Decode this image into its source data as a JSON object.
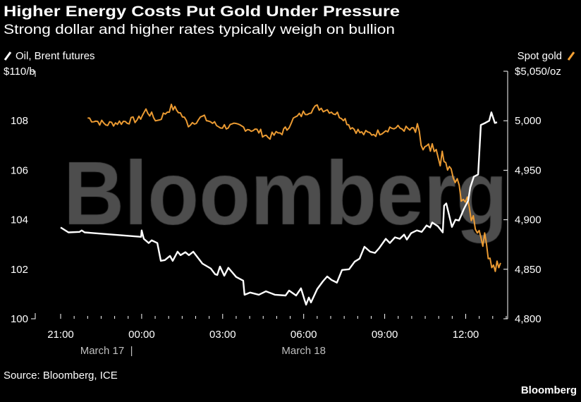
{
  "title": "Higher Energy Costs Put Gold Under Pressure",
  "subtitle": "Strong dollar and higher rates typically weigh on bullion",
  "source": "Source: Bloomberg, ICE",
  "brand": "Bloomberg",
  "watermark": "Bloomberg",
  "colors": {
    "oil": "#ffffff",
    "gold": "#f7a235",
    "background": "#000000",
    "watermark": "#4d4d4d"
  },
  "chart_data": {
    "type": "line",
    "title": "Higher Energy Costs Put Gold Under Pressure",
    "x_unit": "hours since 21:00 March 17",
    "xlim": [
      0,
      16.55
    ],
    "x_ticks": [
      {
        "h": 0,
        "label": "21:00"
      },
      {
        "h": 3,
        "label": "00:00"
      },
      {
        "h": 6,
        "label": "03:00"
      },
      {
        "h": 9,
        "label": "06:00"
      },
      {
        "h": 12,
        "label": "09:00"
      },
      {
        "h": 15,
        "label": "12:00"
      }
    ],
    "date_labels": [
      {
        "h": 1.7,
        "label": "March 17  |"
      },
      {
        "h": 9.0,
        "label": "March 18"
      }
    ],
    "left_axis": {
      "ylim": [
        100,
        110
      ],
      "ticks": [
        {
          "v": 110,
          "label": "$110/b"
        },
        {
          "v": 108,
          "label": "108"
        },
        {
          "v": 106,
          "label": "106"
        },
        {
          "v": 104,
          "label": "104"
        },
        {
          "v": 102,
          "label": "102"
        },
        {
          "v": 100,
          "label": "100"
        }
      ]
    },
    "right_axis": {
      "ylim": [
        4800,
        5050
      ],
      "ticks": [
        {
          "v": 5050,
          "label": "$5,050/oz"
        },
        {
          "v": 5000,
          "label": "5,000"
        },
        {
          "v": 4950,
          "label": "4,950"
        },
        {
          "v": 4900,
          "label": "4,900"
        },
        {
          "v": 4850,
          "label": "4,850"
        },
        {
          "v": 4800,
          "label": "4,800"
        }
      ]
    },
    "series": [
      {
        "name": "Oil, Brent futures",
        "axis": "left",
        "color": "#ffffff",
        "points": [
          [
            0.0,
            103.69
          ],
          [
            0.29,
            103.49
          ],
          [
            0.7,
            103.51
          ],
          [
            0.78,
            103.57
          ],
          [
            0.89,
            103.49
          ],
          [
            2.98,
            103.31
          ],
          [
            3.0,
            103.57
          ],
          [
            3.08,
            103.23
          ],
          [
            3.26,
            103.06
          ],
          [
            3.37,
            103.17
          ],
          [
            3.58,
            103.06
          ],
          [
            3.71,
            102.34
          ],
          [
            3.86,
            102.37
          ],
          [
            4.05,
            102.54
          ],
          [
            4.15,
            102.34
          ],
          [
            4.33,
            102.71
          ],
          [
            4.44,
            102.57
          ],
          [
            4.62,
            102.69
          ],
          [
            4.75,
            102.57
          ],
          [
            4.91,
            102.71
          ],
          [
            5.25,
            102.23
          ],
          [
            5.56,
            102.03
          ],
          [
            5.72,
            101.8
          ],
          [
            5.8,
            101.77
          ],
          [
            5.9,
            102.11
          ],
          [
            6.06,
            101.74
          ],
          [
            6.21,
            102.06
          ],
          [
            6.5,
            101.69
          ],
          [
            6.76,
            101.54
          ],
          [
            6.81,
            100.97
          ],
          [
            7.02,
            101.06
          ],
          [
            7.34,
            100.97
          ],
          [
            7.6,
            101.11
          ],
          [
            7.94,
            100.97
          ],
          [
            8.33,
            100.94
          ],
          [
            8.46,
            101.14
          ],
          [
            8.72,
            100.94
          ],
          [
            8.9,
            101.23
          ],
          [
            9.03,
            100.77
          ],
          [
            9.09,
            100.57
          ],
          [
            9.19,
            100.86
          ],
          [
            9.27,
            100.66
          ],
          [
            9.5,
            101.2
          ],
          [
            9.71,
            101.51
          ],
          [
            9.87,
            101.71
          ],
          [
            10.03,
            101.57
          ],
          [
            10.23,
            101.46
          ],
          [
            10.42,
            101.97
          ],
          [
            10.68,
            102.0
          ],
          [
            10.89,
            102.31
          ],
          [
            11.07,
            102.43
          ],
          [
            11.25,
            102.91
          ],
          [
            11.46,
            102.71
          ],
          [
            11.64,
            102.66
          ],
          [
            11.8,
            102.86
          ],
          [
            12.04,
            103.23
          ],
          [
            12.19,
            103.06
          ],
          [
            12.38,
            103.29
          ],
          [
            12.56,
            103.23
          ],
          [
            12.72,
            103.4
          ],
          [
            12.82,
            103.2
          ],
          [
            12.98,
            103.46
          ],
          [
            13.19,
            103.57
          ],
          [
            13.37,
            103.51
          ],
          [
            13.55,
            103.77
          ],
          [
            13.68,
            103.69
          ],
          [
            13.76,
            103.89
          ],
          [
            13.97,
            103.74
          ],
          [
            14.15,
            103.49
          ],
          [
            14.2,
            104.57
          ],
          [
            14.28,
            104.66
          ],
          [
            14.49,
            103.71
          ],
          [
            14.62,
            104.0
          ],
          [
            14.75,
            103.97
          ],
          [
            14.93,
            104.43
          ],
          [
            15.09,
            104.77
          ],
          [
            15.17,
            105.31
          ],
          [
            15.3,
            105.74
          ],
          [
            15.46,
            105.83
          ],
          [
            15.56,
            107.83
          ],
          [
            15.72,
            107.91
          ],
          [
            15.87,
            108.0
          ],
          [
            15.95,
            108.34
          ],
          [
            16.08,
            107.91
          ],
          [
            16.16,
            107.94
          ]
        ]
      },
      {
        "name": "Spot gold",
        "axis": "right",
        "color": "#f7a235",
        "points": [
          [
            1.0,
            5002.9
          ],
          [
            1.67,
            4996.4
          ],
          [
            2.9,
            5001.4
          ],
          [
            3.16,
            5010.7
          ],
          [
            3.58,
            5000.0
          ],
          [
            4.1,
            5013.6
          ],
          [
            4.36,
            5010.0
          ],
          [
            4.73,
            4996.4
          ],
          [
            5.25,
            5003.6
          ],
          [
            5.85,
            4994.3
          ],
          [
            6.63,
            4994.3
          ],
          [
            7.34,
            4989.3
          ],
          [
            7.68,
            4983.6
          ],
          [
            8.2,
            4988.6
          ],
          [
            8.38,
            4992.1
          ],
          [
            8.54,
            5000.0
          ],
          [
            9.06,
            5008.6
          ],
          [
            9.5,
            5013.6
          ],
          [
            9.95,
            5010.7
          ],
          [
            10.47,
            5003.6
          ],
          [
            10.73,
            4994.3
          ],
          [
            11.15,
            4987.1
          ],
          [
            11.67,
            4987.1
          ],
          [
            12.19,
            4992.9
          ],
          [
            12.72,
            4992.1
          ],
          [
            13.21,
            4988.6
          ],
          [
            13.42,
            4970.7
          ],
          [
            13.76,
            4967.9
          ],
          [
            14.13,
            4960.7
          ],
          [
            14.46,
            4946.4
          ],
          [
            14.91,
            4922.9
          ],
          [
            15.43,
            4892.1
          ],
          [
            15.77,
            4875.0
          ],
          [
            16.03,
            4851.4
          ],
          [
            16.29,
            4856.4
          ]
        ]
      }
    ]
  }
}
